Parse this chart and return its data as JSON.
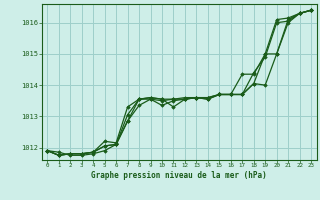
{
  "background_color": "#ceeee8",
  "grid_color": "#9ecfca",
  "line_color": "#1a5c1a",
  "marker_color": "#1a5c1a",
  "title": "Graphe pression niveau de la mer (hPa)",
  "xlim": [
    -0.5,
    23.5
  ],
  "ylim": [
    1011.6,
    1016.6
  ],
  "yticks": [
    1012,
    1013,
    1014,
    1015,
    1016
  ],
  "xticks": [
    0,
    1,
    2,
    3,
    4,
    5,
    6,
    7,
    8,
    9,
    10,
    11,
    12,
    13,
    14,
    15,
    16,
    17,
    18,
    19,
    20,
    21,
    22,
    23
  ],
  "series": [
    [
      1011.9,
      1011.85,
      1011.75,
      1011.75,
      1011.8,
      1011.9,
      1012.1,
      1013.05,
      1013.55,
      1013.6,
      1013.55,
      1013.3,
      1013.55,
      1013.6,
      1013.55,
      1013.7,
      1013.7,
      1013.7,
      1014.05,
      1014.0,
      1015.0,
      1016.1,
      1016.3,
      1016.4
    ],
    [
      1011.9,
      1011.75,
      1011.8,
      1011.8,
      1011.85,
      1012.05,
      1012.1,
      1012.85,
      1013.35,
      1013.55,
      1013.35,
      1013.5,
      1013.55,
      1013.6,
      1013.55,
      1013.7,
      1013.7,
      1013.7,
      1014.05,
      1015.0,
      1015.0,
      1016.0,
      1016.3,
      1016.4
    ],
    [
      1011.9,
      1011.75,
      1011.8,
      1011.8,
      1011.85,
      1012.05,
      1012.1,
      1012.85,
      1013.55,
      1013.55,
      1013.5,
      1013.55,
      1013.55,
      1013.6,
      1013.6,
      1013.7,
      1013.7,
      1013.7,
      1014.4,
      1014.9,
      1016.0,
      1016.05,
      1016.3,
      1016.4
    ],
    [
      1011.9,
      1011.75,
      1011.8,
      1011.8,
      1011.85,
      1012.2,
      1012.15,
      1013.3,
      1013.55,
      1013.6,
      1013.55,
      1013.55,
      1013.6,
      1013.6,
      1013.6,
      1013.7,
      1013.7,
      1014.35,
      1014.35,
      1015.0,
      1016.1,
      1016.15,
      1016.3,
      1016.4
    ]
  ]
}
